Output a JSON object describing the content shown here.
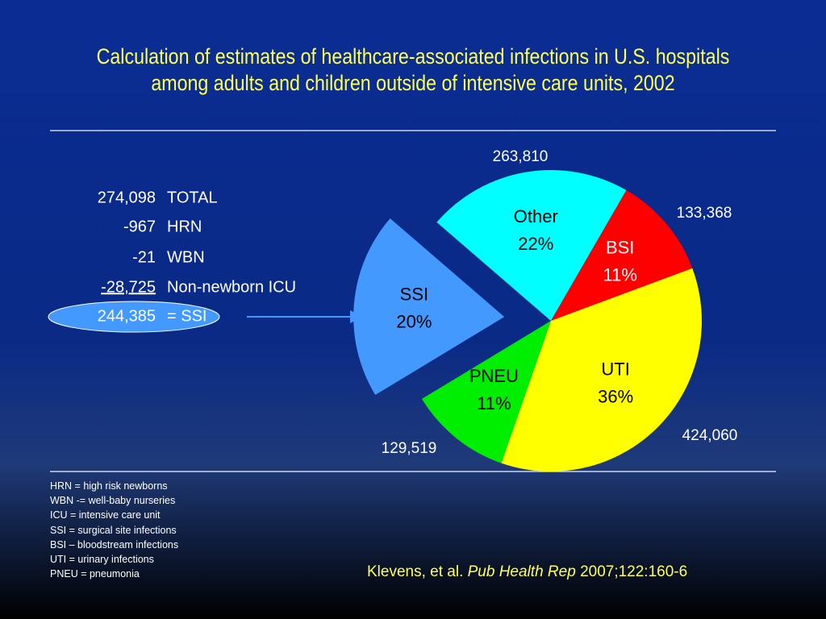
{
  "chart_data": {
    "type": "pie",
    "title": "Calculation of estimates of healthcare-associated infections in U.S. hospitals among adults and children outside of intensive care units, 2002",
    "categories": [
      "Other",
      "BSI",
      "UTI",
      "PNEU",
      "SSI"
    ],
    "values": [
      22,
      11,
      36,
      11,
      20
    ],
    "value_labels": [
      "22%",
      "11%",
      "36%",
      "11%",
      "20%"
    ],
    "colors": [
      "#00ffff",
      "#ff0000",
      "#ffff00",
      "#00ee00",
      "#4499ff"
    ],
    "count_labels": [
      "263,810",
      "133,368",
      "424,060",
      "129,519",
      null
    ],
    "exploded": "SSI"
  },
  "table": {
    "rows": [
      [
        "274,098",
        "TOTAL"
      ],
      [
        "-967",
        "HRN"
      ],
      [
        "-21",
        "WBN"
      ],
      [
        "-28,725",
        "Non-newborn ICU"
      ],
      [
        "244,385",
        "= SSI"
      ]
    ]
  },
  "footnotes": [
    "HRN = high risk newborns",
    "WBN -= well-baby nurseries",
    "ICU = intensive care unit",
    "SSI = surgical site infections",
    "BSI – bloodstream infections",
    "UTI = urinary infections",
    "PNEU = pneumonia"
  ],
  "citation": {
    "authors": "Klevens, et al.",
    "journal": "Pub Health Rep",
    "details": "2007;122:160-6"
  }
}
